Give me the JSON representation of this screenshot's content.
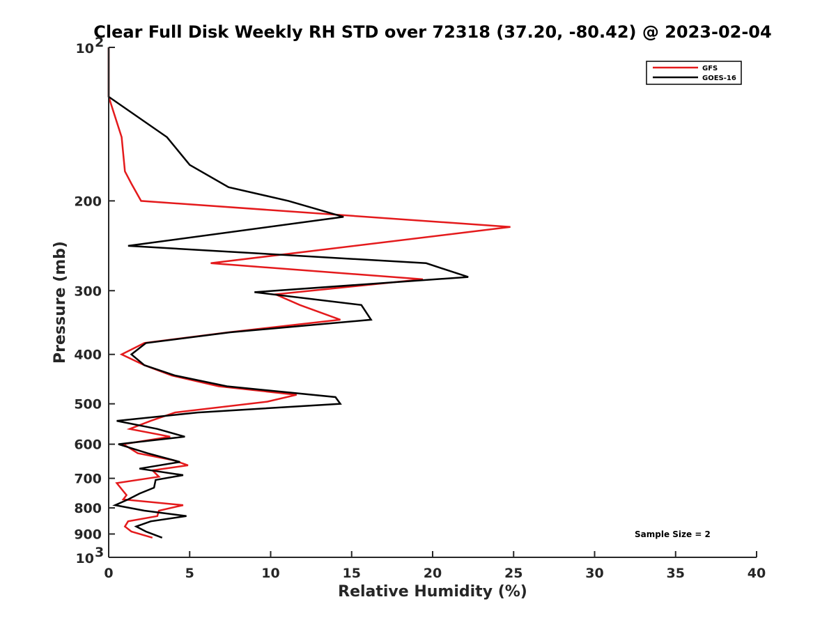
{
  "chart_data": {
    "type": "line",
    "title": "Clear Full Disk Weekly RH STD over 72318 (37.20, -80.42) @ 2023-02-04",
    "xlabel": "Relative Humidity (%)",
    "ylabel": "Pressure (mb)",
    "xlim": [
      0,
      40
    ],
    "ylim": [
      100,
      1000
    ],
    "yscale": "log",
    "y_reversed": true,
    "x_ticks": [
      "0",
      "5",
      "10",
      "15",
      "20",
      "25",
      "30",
      "35",
      "40"
    ],
    "y_ticks": [
      {
        "value": 100,
        "base": "10",
        "exp": "2"
      },
      {
        "value": 200,
        "base": "200",
        "exp": ""
      },
      {
        "value": 300,
        "base": "300",
        "exp": ""
      },
      {
        "value": 400,
        "base": "400",
        "exp": ""
      },
      {
        "value": 500,
        "base": "500",
        "exp": ""
      },
      {
        "value": 600,
        "base": "600",
        "exp": ""
      },
      {
        "value": 700,
        "base": "700",
        "exp": ""
      },
      {
        "value": 800,
        "base": "800",
        "exp": ""
      },
      {
        "value": 900,
        "base": "900",
        "exp": ""
      },
      {
        "value": 1000,
        "base": "10",
        "exp": "3"
      }
    ],
    "legend_position": "top-right",
    "annotation": "Sample Size = 2",
    "series": [
      {
        "name": "GFS",
        "color": "#e41a1c",
        "points": [
          [
            0,
            100
          ],
          [
            0,
            125
          ],
          [
            0.8,
            150
          ],
          [
            1.0,
            175
          ],
          [
            1.4,
            185
          ],
          [
            2.0,
            200
          ],
          [
            24.8,
            225
          ],
          [
            6.3,
            265
          ],
          [
            19.4,
            285
          ],
          [
            10.3,
            305
          ],
          [
            11.8,
            320
          ],
          [
            14.3,
            342
          ],
          [
            7.4,
            362
          ],
          [
            2.2,
            380
          ],
          [
            0.8,
            400
          ],
          [
            2.2,
            420
          ],
          [
            3.9,
            440
          ],
          [
            6.8,
            462
          ],
          [
            11.6,
            480
          ],
          [
            9.8,
            495
          ],
          [
            4.1,
            520
          ],
          [
            2.6,
            540
          ],
          [
            1.3,
            560
          ],
          [
            3.8,
            580
          ],
          [
            0.9,
            600
          ],
          [
            1.8,
            625
          ],
          [
            4.0,
            645
          ],
          [
            4.9,
            660
          ],
          [
            2.7,
            675
          ],
          [
            3.1,
            695
          ],
          [
            0.5,
            715
          ],
          [
            0.8,
            735
          ],
          [
            1.1,
            755
          ],
          [
            0.9,
            770
          ],
          [
            4.6,
            790
          ],
          [
            3.1,
            810
          ],
          [
            3.0,
            830
          ],
          [
            1.2,
            850
          ],
          [
            1.0,
            870
          ],
          [
            1.4,
            890
          ],
          [
            2.7,
            915
          ]
        ]
      },
      {
        "name": "GOES-16",
        "color": "#000000",
        "points": [
          [
            0,
            100
          ],
          [
            0,
            125
          ],
          [
            3.6,
            150
          ],
          [
            5.0,
            170
          ],
          [
            7.4,
            188
          ],
          [
            11.1,
            200
          ],
          [
            14.5,
            215
          ],
          [
            1.2,
            245
          ],
          [
            19.6,
            265
          ],
          [
            22.2,
            282
          ],
          [
            9.0,
            302
          ],
          [
            15.6,
            320
          ],
          [
            16.2,
            342
          ],
          [
            7.5,
            362
          ],
          [
            2.3,
            380
          ],
          [
            1.4,
            400
          ],
          [
            2.2,
            420
          ],
          [
            4.1,
            440
          ],
          [
            7.3,
            462
          ],
          [
            14.0,
            485
          ],
          [
            14.3,
            500
          ],
          [
            5.5,
            520
          ],
          [
            0.5,
            540
          ],
          [
            3.0,
            560
          ],
          [
            4.7,
            580
          ],
          [
            0.6,
            600
          ],
          [
            2.4,
            625
          ],
          [
            4.4,
            650
          ],
          [
            1.9,
            670
          ],
          [
            4.6,
            690
          ],
          [
            2.9,
            705
          ],
          [
            2.8,
            730
          ],
          [
            1.9,
            750
          ],
          [
            1.2,
            770
          ],
          [
            0.4,
            790
          ],
          [
            2.2,
            810
          ],
          [
            4.8,
            830
          ],
          [
            2.6,
            850
          ],
          [
            1.7,
            870
          ],
          [
            2.3,
            890
          ],
          [
            3.3,
            915
          ]
        ]
      }
    ]
  }
}
